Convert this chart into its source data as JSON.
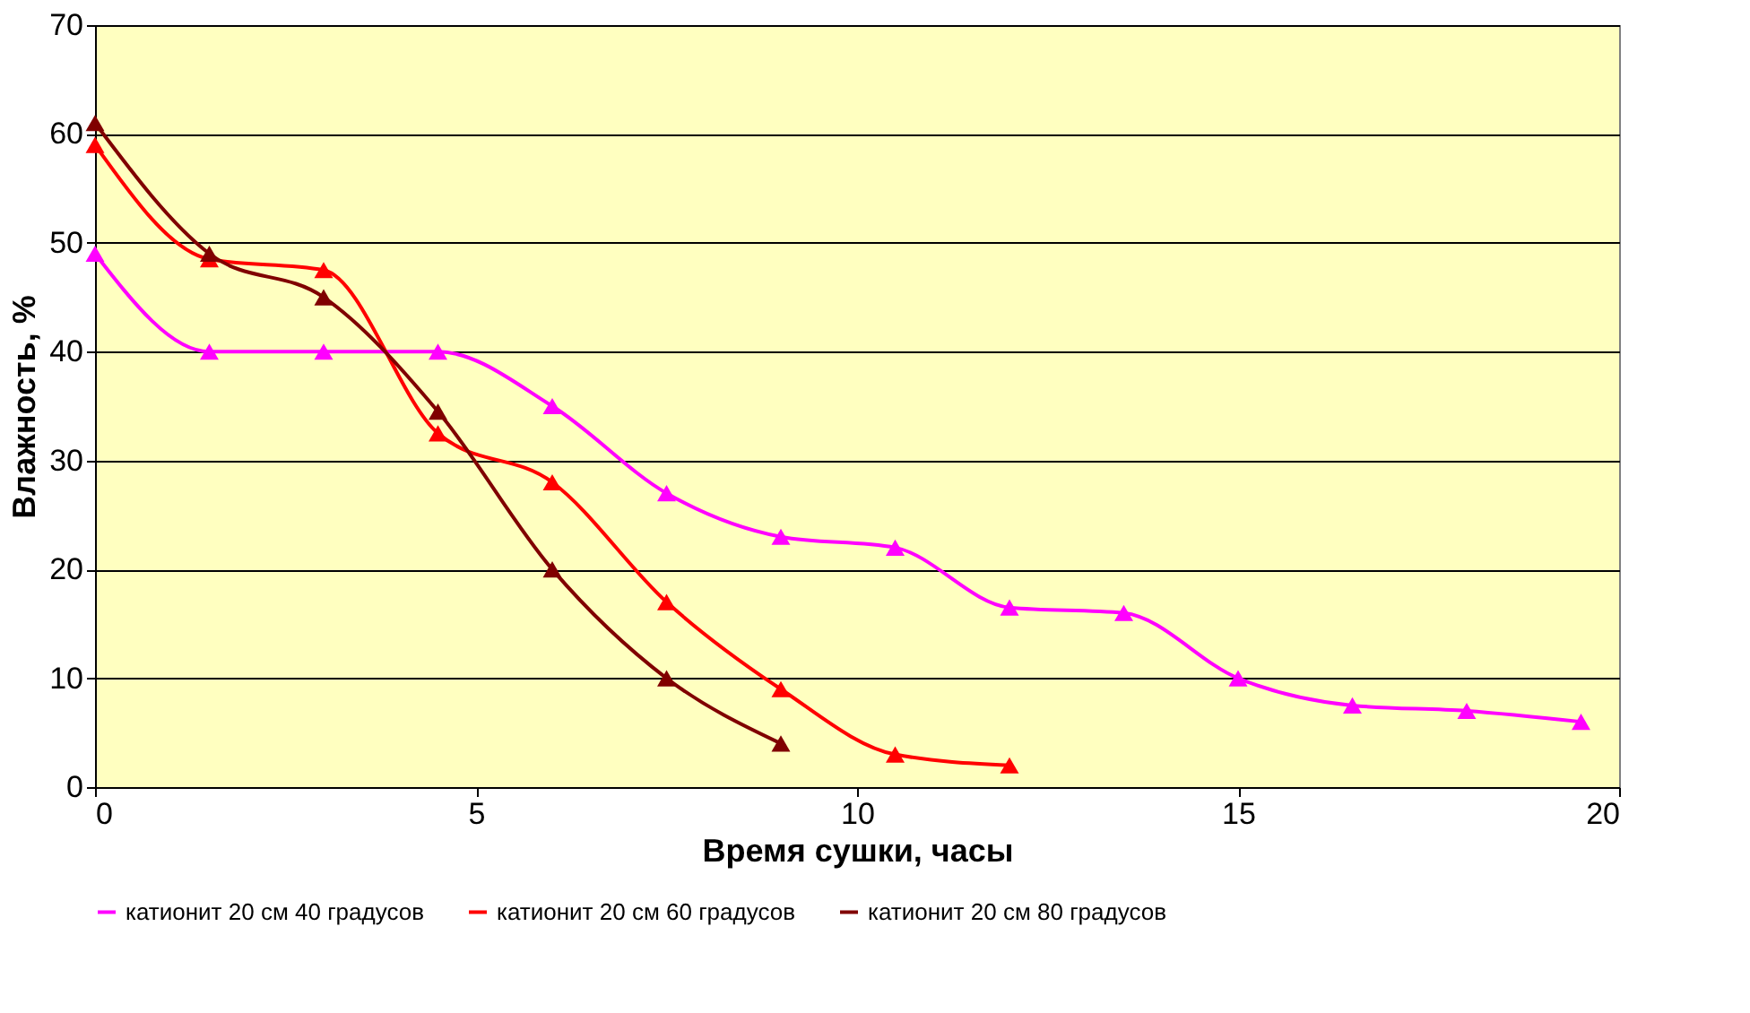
{
  "chart_data": {
    "type": "line",
    "xlabel": "Время сушки, часы",
    "ylabel": "Влажность, %",
    "xlim": [
      0,
      20
    ],
    "xticks": [
      0,
      5,
      10,
      15,
      20
    ],
    "ylim": [
      0,
      70
    ],
    "yticks": [
      0,
      10,
      20,
      30,
      40,
      50,
      60,
      70
    ],
    "grid": "y",
    "legend": "bottom",
    "marker": "triangle",
    "series": [
      {
        "name": "катионит 20 см 40 градусов",
        "color": "#ff00ff",
        "x": [
          0,
          1.5,
          3,
          4.5,
          6,
          7.5,
          9,
          10.5,
          12,
          13.5,
          15,
          16.5,
          18,
          19.5
        ],
        "values": [
          49,
          40,
          40,
          40,
          35,
          27,
          23,
          22,
          16.5,
          16,
          10,
          7.5,
          7,
          6
        ]
      },
      {
        "name": "катионит 20 см 60 градусов",
        "color": "#ff0000",
        "x": [
          0,
          1.5,
          3,
          4.5,
          6,
          7.5,
          9,
          10.5,
          12
        ],
        "values": [
          59,
          48.5,
          47.5,
          32.5,
          28,
          17,
          9,
          3,
          2
        ]
      },
      {
        "name": "катионит 20 см 80 градусов",
        "color": "#800000",
        "x": [
          0,
          1.5,
          3,
          4.5,
          6,
          7.5,
          9
        ],
        "values": [
          61,
          49,
          45,
          34.5,
          20,
          10,
          4
        ]
      }
    ]
  }
}
